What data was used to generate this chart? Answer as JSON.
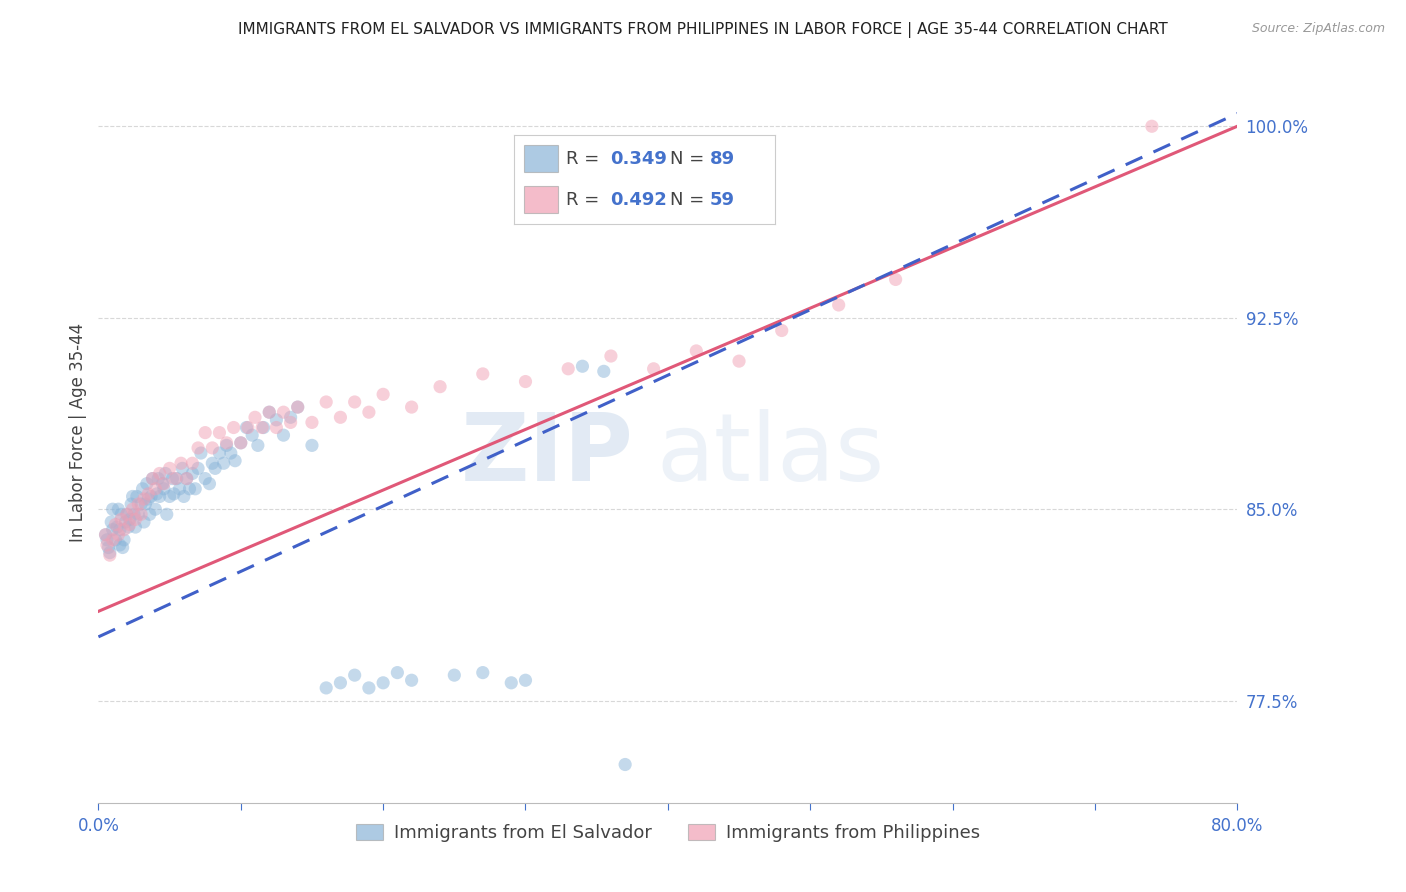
{
  "title": "IMMIGRANTS FROM EL SALVADOR VS IMMIGRANTS FROM PHILIPPINES IN LABOR FORCE | AGE 35-44 CORRELATION CHART",
  "source": "Source: ZipAtlas.com",
  "ylabel": "In Labor Force | Age 35-44",
  "xlim": [
    0.0,
    0.8
  ],
  "ylim": [
    0.735,
    1.025
  ],
  "xticks": [
    0.0,
    0.1,
    0.2,
    0.3,
    0.4,
    0.5,
    0.6,
    0.7,
    0.8
  ],
  "yticks": [
    0.775,
    0.85,
    0.925,
    1.0
  ],
  "yticklabels": [
    "77.5%",
    "85.0%",
    "92.5%",
    "100.0%"
  ],
  "blue_color": "#8ab4d8",
  "pink_color": "#f0a0b4",
  "blue_line_color": "#4060c8",
  "pink_line_color": "#e05878",
  "R_blue": 0.349,
  "N_blue": 89,
  "R_pink": 0.492,
  "N_pink": 59,
  "legend_label_blue": "Immigrants from El Salvador",
  "legend_label_pink": "Immigrants from Philippines",
  "watermark_zip": "ZIP",
  "watermark_atlas": "atlas",
  "background_color": "#ffffff",
  "scatter_alpha": 0.5,
  "scatter_size": 90,
  "blue_line_x0": 0.0,
  "blue_line_y0": 0.8,
  "blue_line_x1": 0.8,
  "blue_line_y1": 1.005,
  "pink_line_x0": 0.0,
  "pink_line_y0": 0.81,
  "pink_line_x1": 0.8,
  "pink_line_y1": 1.0,
  "blue_x": [
    0.005,
    0.006,
    0.007,
    0.008,
    0.009,
    0.01,
    0.01,
    0.012,
    0.013,
    0.014,
    0.015,
    0.015,
    0.016,
    0.017,
    0.018,
    0.019,
    0.02,
    0.021,
    0.022,
    0.023,
    0.024,
    0.025,
    0.026,
    0.027,
    0.028,
    0.03,
    0.031,
    0.032,
    0.033,
    0.034,
    0.035,
    0.036,
    0.037,
    0.038,
    0.04,
    0.041,
    0.042,
    0.043,
    0.045,
    0.046,
    0.047,
    0.048,
    0.05,
    0.052,
    0.053,
    0.055,
    0.057,
    0.059,
    0.06,
    0.062,
    0.064,
    0.066,
    0.068,
    0.07,
    0.072,
    0.075,
    0.078,
    0.08,
    0.082,
    0.085,
    0.088,
    0.09,
    0.093,
    0.096,
    0.1,
    0.104,
    0.108,
    0.112,
    0.116,
    0.12,
    0.125,
    0.13,
    0.135,
    0.14,
    0.15,
    0.16,
    0.17,
    0.18,
    0.19,
    0.2,
    0.21,
    0.22,
    0.25,
    0.27,
    0.29,
    0.3,
    0.34,
    0.355,
    0.37
  ],
  "blue_y": [
    0.84,
    0.838,
    0.835,
    0.833,
    0.845,
    0.85,
    0.842,
    0.838,
    0.843,
    0.85,
    0.836,
    0.842,
    0.848,
    0.835,
    0.838,
    0.845,
    0.848,
    0.843,
    0.846,
    0.852,
    0.855,
    0.848,
    0.843,
    0.855,
    0.848,
    0.852,
    0.858,
    0.845,
    0.852,
    0.86,
    0.854,
    0.848,
    0.855,
    0.862,
    0.85,
    0.856,
    0.862,
    0.855,
    0.86,
    0.858,
    0.864,
    0.848,
    0.855,
    0.862,
    0.856,
    0.862,
    0.858,
    0.866,
    0.855,
    0.862,
    0.858,
    0.864,
    0.858,
    0.866,
    0.872,
    0.862,
    0.86,
    0.868,
    0.866,
    0.872,
    0.868,
    0.875,
    0.872,
    0.869,
    0.876,
    0.882,
    0.879,
    0.875,
    0.882,
    0.888,
    0.885,
    0.879,
    0.886,
    0.89,
    0.875,
    0.78,
    0.782,
    0.785,
    0.78,
    0.782,
    0.786,
    0.783,
    0.785,
    0.786,
    0.782,
    0.783,
    0.906,
    0.904,
    0.75
  ],
  "pink_x": [
    0.005,
    0.006,
    0.008,
    0.01,
    0.012,
    0.014,
    0.016,
    0.018,
    0.02,
    0.022,
    0.024,
    0.026,
    0.028,
    0.03,
    0.032,
    0.035,
    0.038,
    0.04,
    0.043,
    0.046,
    0.05,
    0.054,
    0.058,
    0.062,
    0.066,
    0.07,
    0.075,
    0.08,
    0.085,
    0.09,
    0.095,
    0.1,
    0.105,
    0.11,
    0.115,
    0.12,
    0.125,
    0.13,
    0.135,
    0.14,
    0.15,
    0.16,
    0.17,
    0.18,
    0.19,
    0.2,
    0.22,
    0.24,
    0.27,
    0.3,
    0.33,
    0.36,
    0.39,
    0.42,
    0.45,
    0.48,
    0.52,
    0.56,
    0.74
  ],
  "pink_y": [
    0.84,
    0.836,
    0.832,
    0.838,
    0.844,
    0.84,
    0.846,
    0.842,
    0.848,
    0.844,
    0.85,
    0.846,
    0.852,
    0.848,
    0.854,
    0.856,
    0.862,
    0.858,
    0.864,
    0.86,
    0.866,
    0.862,
    0.868,
    0.862,
    0.868,
    0.874,
    0.88,
    0.874,
    0.88,
    0.876,
    0.882,
    0.876,
    0.882,
    0.886,
    0.882,
    0.888,
    0.882,
    0.888,
    0.884,
    0.89,
    0.884,
    0.892,
    0.886,
    0.892,
    0.888,
    0.895,
    0.89,
    0.898,
    0.903,
    0.9,
    0.905,
    0.91,
    0.905,
    0.912,
    0.908,
    0.92,
    0.93,
    0.94,
    1.0
  ],
  "grid_color": "#d8d8d8",
  "tick_color": "#4472cc",
  "title_fontsize": 11,
  "axis_label_fontsize": 12,
  "tick_fontsize": 12
}
